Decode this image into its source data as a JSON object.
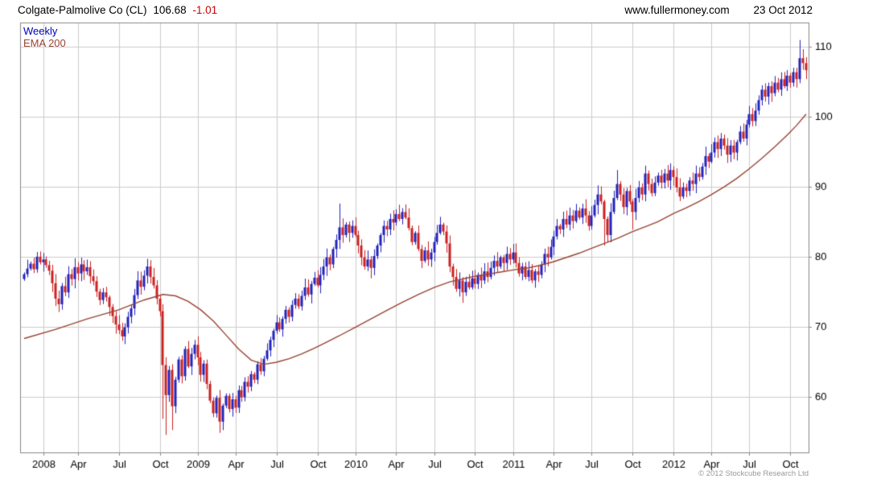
{
  "header": {
    "instrument": "Colgate-Palmolive Co (CL)",
    "last_price": "106.68",
    "change": "-1.01",
    "site": "www.fullermoney.com",
    "date": "23 Oct 2012"
  },
  "legend": {
    "timeframe": "Weekly",
    "ema": "EMA 200"
  },
  "footer": {
    "copyright": "© 2012 Stockcube Research Ltd"
  },
  "colors": {
    "up": "#2222bb",
    "down": "#cc2020",
    "ema": "#994433",
    "grid": "#cccccc",
    "border": "#888888",
    "axis_text": "#000000",
    "timeframe_text": "#0000bb",
    "change_text": "#cc0000",
    "copyright_text": "#999999",
    "background": "#ffffff"
  },
  "chart_data": {
    "type": "candlestick",
    "title": "Colgate-Palmolive Co (CL) 106.68 -1.01",
    "timeframe": "Weekly",
    "overlay": "EMA 200",
    "legend_position": "top-left",
    "grid": true,
    "y_axis": {
      "min": 52,
      "max": 113.5,
      "gridlines": [
        60,
        70,
        80,
        90,
        100,
        110
      ],
      "side": "right"
    },
    "x_ticks": [
      [
        6,
        "2008"
      ],
      [
        17,
        "Apr"
      ],
      [
        30,
        "Jul"
      ],
      [
        43,
        "Oct"
      ],
      [
        55,
        "2009"
      ],
      [
        67,
        "Apr"
      ],
      [
        80,
        "Jul"
      ],
      [
        93,
        "Oct"
      ],
      [
        105,
        "2010"
      ],
      [
        118,
        "Apr"
      ],
      [
        130,
        "Jul"
      ],
      [
        143,
        "Oct"
      ],
      [
        155,
        "2011"
      ],
      [
        168,
        "Apr"
      ],
      [
        180,
        "Jul"
      ],
      [
        193,
        "Oct"
      ],
      [
        206,
        "2012"
      ],
      [
        218,
        "Apr"
      ],
      [
        230,
        "Jul"
      ],
      [
        243,
        "Oct"
      ]
    ],
    "first_open": 76.8,
    "closes": [
      77.5,
      78.3,
      79.0,
      78.2,
      80.0,
      79.2,
      79.6,
      78.8,
      78.0,
      76.2,
      74.0,
      73.2,
      75.8,
      74.9,
      77.5,
      76.8,
      78.5,
      77.6,
      78.9,
      77.9,
      78.5,
      77.2,
      76.5,
      75.0,
      73.8,
      74.9,
      74.2,
      72.8,
      71.5,
      70.3,
      69.5,
      68.6,
      69.9,
      71.4,
      72.6,
      74.5,
      76.6,
      75.7,
      77.3,
      78.6,
      77.1,
      75.9,
      74.0,
      72.2,
      64.5,
      60.2,
      63.8,
      58.6,
      62.4,
      65.3,
      62.9,
      66.8,
      64.3,
      66.1,
      67.4,
      65.6,
      63.1,
      64.7,
      61.8,
      59.4,
      57.6,
      59.8,
      56.4,
      58.7,
      60.1,
      58.2,
      59.6,
      58.4,
      60.9,
      59.9,
      62.1,
      61.4,
      63.2,
      62.4,
      64.6,
      63.6,
      65.4,
      66.6,
      68.1,
      69.4,
      70.6,
      69.6,
      71.1,
      72.4,
      71.4,
      73.1,
      74.0,
      72.9,
      74.4,
      75.6,
      74.6,
      76.1,
      77.0,
      75.9,
      77.4,
      78.6,
      79.9,
      78.9,
      81.1,
      82.4,
      84.2,
      83.1,
      84.6,
      83.4,
      84.4,
      83.1,
      81.6,
      79.9,
      78.6,
      79.6,
      78.4,
      80.1,
      81.6,
      83.1,
      84.4,
      83.9,
      85.4,
      84.9,
      86.1,
      85.4,
      86.4,
      85.6,
      84.1,
      82.1,
      83.4,
      81.1,
      79.4,
      80.9,
      79.6,
      80.6,
      82.1,
      83.4,
      84.6,
      83.6,
      81.9,
      78.6,
      77.1,
      75.4,
      76.6,
      74.9,
      76.4,
      75.6,
      76.9,
      76.1,
      77.4,
      76.6,
      77.9,
      77.1,
      78.4,
      79.4,
      78.6,
      79.9,
      79.1,
      80.4,
      79.6,
      80.6,
      79.1,
      77.6,
      78.6,
      77.1,
      78.1,
      76.6,
      77.9,
      77.4,
      78.9,
      80.4,
      79.9,
      81.4,
      82.9,
      84.4,
      83.9,
      85.4,
      84.6,
      85.9,
      85.1,
      86.6,
      85.6,
      86.9,
      85.9,
      84.4,
      85.9,
      87.4,
      88.9,
      87.9,
      85.4,
      83.1,
      86.4,
      88.4,
      90.4,
      88.9,
      87.1,
      89.4,
      87.9,
      86.4,
      88.4,
      89.9,
      88.9,
      91.9,
      90.4,
      89.1,
      90.6,
      91.6,
      90.6,
      91.9,
      90.9,
      92.4,
      91.4,
      89.9,
      88.6,
      89.9,
      89.4,
      90.9,
      90.4,
      91.9,
      91.4,
      92.9,
      94.4,
      93.6,
      94.9,
      96.4,
      95.4,
      96.9,
      95.9,
      94.6,
      95.9,
      94.9,
      96.4,
      97.9,
      96.9,
      98.9,
      100.4,
      99.4,
      100.9,
      102.4,
      103.9,
      102.9,
      104.4,
      103.4,
      104.9,
      103.9,
      105.4,
      104.4,
      105.9,
      104.9,
      106.4,
      105.4,
      108.4,
      107.7,
      106.68
    ],
    "wick_overrides": {
      "44": {
        "low": 56.8
      },
      "45": {
        "low": 54.5
      },
      "47": {
        "low": 55.2
      },
      "62": {
        "low": 54.8
      },
      "100": {
        "high": 87.6
      },
      "110": {
        "low": 76.9
      },
      "139": {
        "low": 73.4
      },
      "182": {
        "high": 90.2
      },
      "184": {
        "low": 81.6
      },
      "188": {
        "high": 92.4
      },
      "193": {
        "low": 83.9
      },
      "246": {
        "high": 111.0
      }
    },
    "ema_points": [
      [
        0,
        68.3
      ],
      [
        10,
        69.6
      ],
      [
        20,
        71.1
      ],
      [
        30,
        72.4
      ],
      [
        38,
        73.8
      ],
      [
        44,
        74.6
      ],
      [
        48,
        74.4
      ],
      [
        52,
        73.6
      ],
      [
        56,
        72.4
      ],
      [
        60,
        70.8
      ],
      [
        64,
        68.8
      ],
      [
        68,
        66.8
      ],
      [
        72,
        65.2
      ],
      [
        76,
        64.6
      ],
      [
        80,
        64.9
      ],
      [
        84,
        65.4
      ],
      [
        88,
        66.1
      ],
      [
        92,
        66.9
      ],
      [
        96,
        67.8
      ],
      [
        100,
        68.7
      ],
      [
        105,
        69.9
      ],
      [
        110,
        71.1
      ],
      [
        115,
        72.3
      ],
      [
        120,
        73.5
      ],
      [
        125,
        74.6
      ],
      [
        130,
        75.6
      ],
      [
        135,
        76.4
      ],
      [
        140,
        76.9
      ],
      [
        143,
        77.2
      ],
      [
        147,
        77.5
      ],
      [
        151,
        77.8
      ],
      [
        155,
        78.1
      ],
      [
        160,
        78.4
      ],
      [
        164,
        78.8
      ],
      [
        168,
        79.3
      ],
      [
        172,
        79.9
      ],
      [
        176,
        80.5
      ],
      [
        180,
        81.2
      ],
      [
        184,
        81.9
      ],
      [
        188,
        82.6
      ],
      [
        193,
        83.6
      ],
      [
        197,
        84.3
      ],
      [
        201,
        85.0
      ],
      [
        206,
        86.2
      ],
      [
        210,
        87.0
      ],
      [
        214,
        87.9
      ],
      [
        218,
        88.9
      ],
      [
        222,
        90.0
      ],
      [
        226,
        91.2
      ],
      [
        230,
        92.6
      ],
      [
        234,
        94.1
      ],
      [
        238,
        95.7
      ],
      [
        242,
        97.4
      ],
      [
        245,
        98.8
      ],
      [
        248,
        100.4
      ]
    ]
  }
}
